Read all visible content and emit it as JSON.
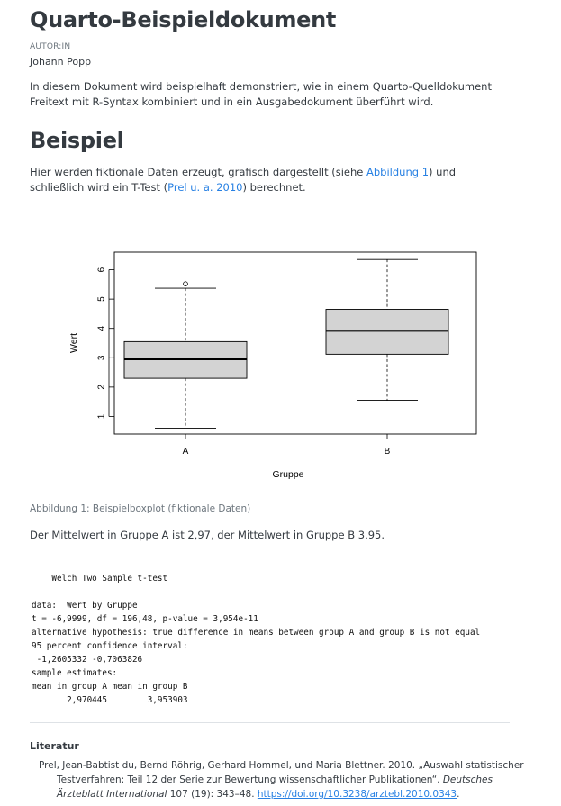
{
  "header": {
    "title": "Quarto-Beispieldokument",
    "author_label": "AUTOR:IN",
    "author_name": "Johann Popp"
  },
  "intro": "In diesem Dokument wird beispielhaft demonstriert, wie in einem Quarto-Quelldokument Freitext mit R-Syntax kombiniert und in ein Ausgabedokument überführt wird.",
  "section": {
    "heading": "Beispiel",
    "text_before_fig_link": "Hier werden fiktionale Daten erzeugt, grafisch dargestellt (siehe ",
    "fig_link": "Abbildung 1",
    "text_between": ") und schließlich wird ein T-Test (",
    "citation_link": "Prel u. a. 2010",
    "text_after": ") berechnet."
  },
  "figure": {
    "caption": "Abbildung 1: Beispielboxplot (fiktionale Daten)"
  },
  "chart_data": {
    "type": "boxplot",
    "xlabel": "Gruppe",
    "ylabel": "Wert",
    "categories": [
      "A",
      "B"
    ],
    "ylim": [
      0.4,
      6.6
    ],
    "yticks": [
      "1",
      "2",
      "3",
      "4",
      "5",
      "6"
    ],
    "boxes": [
      {
        "name": "A",
        "whisker_low": 0.6,
        "q1": 2.3,
        "median": 2.95,
        "q3": 3.55,
        "whisker_high": 5.37,
        "outliers": [
          5.52
        ]
      },
      {
        "name": "B",
        "whisker_low": 1.55,
        "q1": 3.12,
        "median": 3.92,
        "q3": 4.65,
        "whisker_high": 6.35,
        "outliers": []
      }
    ],
    "box_fill": "#d3d3d3"
  },
  "mean_text": "Der Mittelwert in Gruppe A ist 2,97, der Mittelwert in Gruppe B 3,95.",
  "ttest_output": [
    "",
    "    Welch Two Sample t-test",
    "",
    "data:  Wert by Gruppe",
    "t = -6,9999, df = 196,48, p-value = 3,954e-11",
    "alternative hypothesis: true difference in means between group A and group B is not equal",
    "95 percent confidence interval:",
    " -1,2605332 -0,7063826",
    "sample estimates:",
    "mean in group A mean in group B",
    "       2,970445        3,953903"
  ],
  "literature": {
    "heading": "Literatur",
    "entry_part1": "Prel, Jean-Babtist du, Bernd Röhrig, Gerhard Hommel, und Maria Blettner. 2010. „Auswahl statistischer Testverfahren: Teil 12 der Serie zur Bewertung wissenschaftlicher Publikationen“. ",
    "entry_journal": "Deutsches Ärzteblatt International",
    "entry_part2": " 107 (19): 343–48. ",
    "entry_doi": "https://doi.org/10.3238/arztebl.2010.0343",
    "entry_end": "."
  }
}
